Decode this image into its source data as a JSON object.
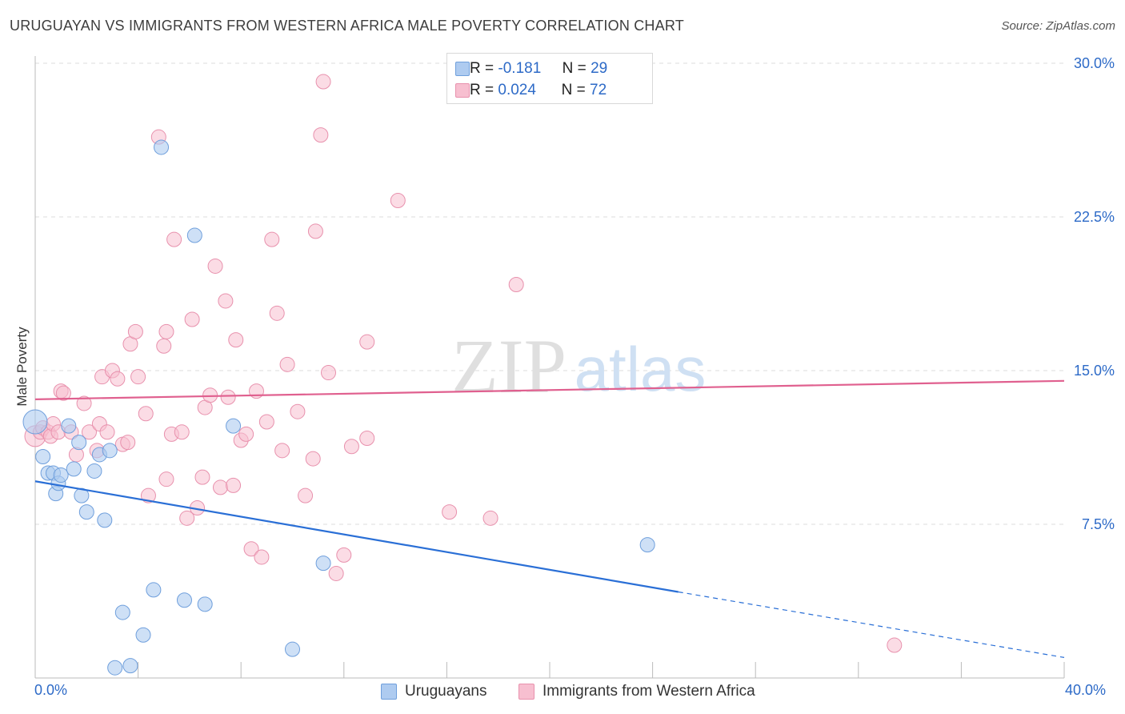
{
  "title": "URUGUAYAN VS IMMIGRANTS FROM WESTERN AFRICA MALE POVERTY CORRELATION CHART",
  "source": "Source: ZipAtlas.com",
  "watermark": {
    "zip": "ZIP",
    "atlas": "atlas"
  },
  "legend_top": {
    "r_label": "R =",
    "n_label": "N =",
    "rows": [
      {
        "r": "-0.181",
        "n": "29"
      },
      {
        "r": "0.024",
        "n": "72"
      }
    ]
  },
  "legend_bottom": [
    "Uruguayans",
    "Immigrants from Western Africa"
  ],
  "colors": {
    "blue_fill": "#aecbf0",
    "blue_stroke": "#6f9fdc",
    "blue_line": "#2a6fd6",
    "pink_fill": "#f7bfd0",
    "pink_stroke": "#e891ad",
    "pink_line": "#e0608f",
    "axis_text": "#2d6ac7",
    "grid": "#dddddd"
  },
  "chart_data": {
    "type": "scatter",
    "title": "URUGUAYAN VS IMMIGRANTS FROM WESTERN AFRICA MALE POVERTY CORRELATION CHART",
    "xlabel": "",
    "ylabel": "Male Poverty",
    "xlim": [
      0,
      40
    ],
    "ylim": [
      0,
      31
    ],
    "x_tick_labels": [
      "0.0%",
      "40.0%"
    ],
    "y_ticks": [
      7.5,
      15.0,
      22.5,
      30.0
    ],
    "y_tick_labels": [
      "7.5%",
      "15.0%",
      "22.5%",
      "30.0%"
    ],
    "series": [
      {
        "name": "Uruguayans",
        "r": -0.181,
        "n": 29,
        "trend": {
          "x0": 0,
          "y0": 9.6,
          "x1": 25,
          "y1": 4.2,
          "dash_x1": 40,
          "dash_y1": 1.0
        },
        "points": [
          [
            0.0,
            12.5
          ],
          [
            0.3,
            10.8
          ],
          [
            0.5,
            10.0
          ],
          [
            0.7,
            10.0
          ],
          [
            0.8,
            9.0
          ],
          [
            0.9,
            9.5
          ],
          [
            1.0,
            9.9
          ],
          [
            1.3,
            12.3
          ],
          [
            1.5,
            10.2
          ],
          [
            1.7,
            11.5
          ],
          [
            1.8,
            8.9
          ],
          [
            2.0,
            8.1
          ],
          [
            2.3,
            10.1
          ],
          [
            2.5,
            10.9
          ],
          [
            2.7,
            7.7
          ],
          [
            2.9,
            11.1
          ],
          [
            3.1,
            0.5
          ],
          [
            3.4,
            3.2
          ],
          [
            3.7,
            0.6
          ],
          [
            4.2,
            2.1
          ],
          [
            4.6,
            4.3
          ],
          [
            4.9,
            25.9
          ],
          [
            5.8,
            3.8
          ],
          [
            6.2,
            21.6
          ],
          [
            6.6,
            3.6
          ],
          [
            7.7,
            12.3
          ],
          [
            10.0,
            1.4
          ],
          [
            11.2,
            5.6
          ],
          [
            23.8,
            6.5
          ]
        ]
      },
      {
        "name": "Immigrants from Western Africa",
        "r": 0.024,
        "n": 72,
        "trend": {
          "x0": 0,
          "y0": 13.6,
          "x1": 40,
          "y1": 14.5
        },
        "points": [
          [
            0.0,
            11.8
          ],
          [
            0.2,
            12.0
          ],
          [
            0.3,
            12.2
          ],
          [
            0.5,
            12.0
          ],
          [
            0.6,
            11.8
          ],
          [
            0.7,
            12.4
          ],
          [
            0.9,
            12.0
          ],
          [
            1.0,
            14.0
          ],
          [
            1.1,
            13.9
          ],
          [
            1.4,
            12.0
          ],
          [
            1.6,
            10.9
          ],
          [
            1.9,
            13.4
          ],
          [
            2.1,
            12.0
          ],
          [
            2.4,
            11.1
          ],
          [
            2.5,
            12.4
          ],
          [
            2.6,
            14.7
          ],
          [
            2.8,
            12.0
          ],
          [
            3.0,
            15.0
          ],
          [
            3.2,
            14.6
          ],
          [
            3.4,
            11.4
          ],
          [
            3.6,
            11.5
          ],
          [
            3.7,
            16.3
          ],
          [
            3.9,
            16.9
          ],
          [
            4.0,
            14.7
          ],
          [
            4.3,
            12.9
          ],
          [
            4.4,
            8.9
          ],
          [
            4.8,
            26.4
          ],
          [
            5.0,
            16.2
          ],
          [
            5.1,
            9.7
          ],
          [
            5.1,
            16.9
          ],
          [
            5.3,
            11.9
          ],
          [
            5.4,
            21.4
          ],
          [
            5.7,
            12.0
          ],
          [
            5.9,
            7.8
          ],
          [
            6.1,
            17.5
          ],
          [
            6.3,
            8.3
          ],
          [
            6.5,
            9.8
          ],
          [
            6.6,
            13.2
          ],
          [
            6.8,
            13.8
          ],
          [
            7.0,
            20.1
          ],
          [
            7.2,
            9.3
          ],
          [
            7.4,
            18.4
          ],
          [
            7.5,
            13.7
          ],
          [
            7.7,
            9.4
          ],
          [
            7.8,
            16.5
          ],
          [
            8.0,
            11.6
          ],
          [
            8.2,
            11.9
          ],
          [
            8.4,
            6.3
          ],
          [
            8.6,
            14.0
          ],
          [
            8.8,
            5.9
          ],
          [
            9.0,
            12.5
          ],
          [
            9.2,
            21.4
          ],
          [
            9.4,
            17.8
          ],
          [
            9.6,
            11.1
          ],
          [
            9.8,
            15.3
          ],
          [
            10.2,
            13.0
          ],
          [
            10.5,
            8.9
          ],
          [
            10.8,
            10.7
          ],
          [
            10.9,
            21.8
          ],
          [
            11.1,
            26.5
          ],
          [
            11.2,
            29.1
          ],
          [
            11.4,
            14.9
          ],
          [
            11.7,
            5.1
          ],
          [
            12.0,
            6.0
          ],
          [
            12.3,
            11.3
          ],
          [
            12.9,
            11.7
          ],
          [
            12.9,
            16.4
          ],
          [
            14.1,
            23.3
          ],
          [
            16.1,
            8.1
          ],
          [
            17.7,
            7.8
          ],
          [
            18.7,
            19.2
          ],
          [
            33.4,
            1.6
          ]
        ]
      }
    ]
  }
}
